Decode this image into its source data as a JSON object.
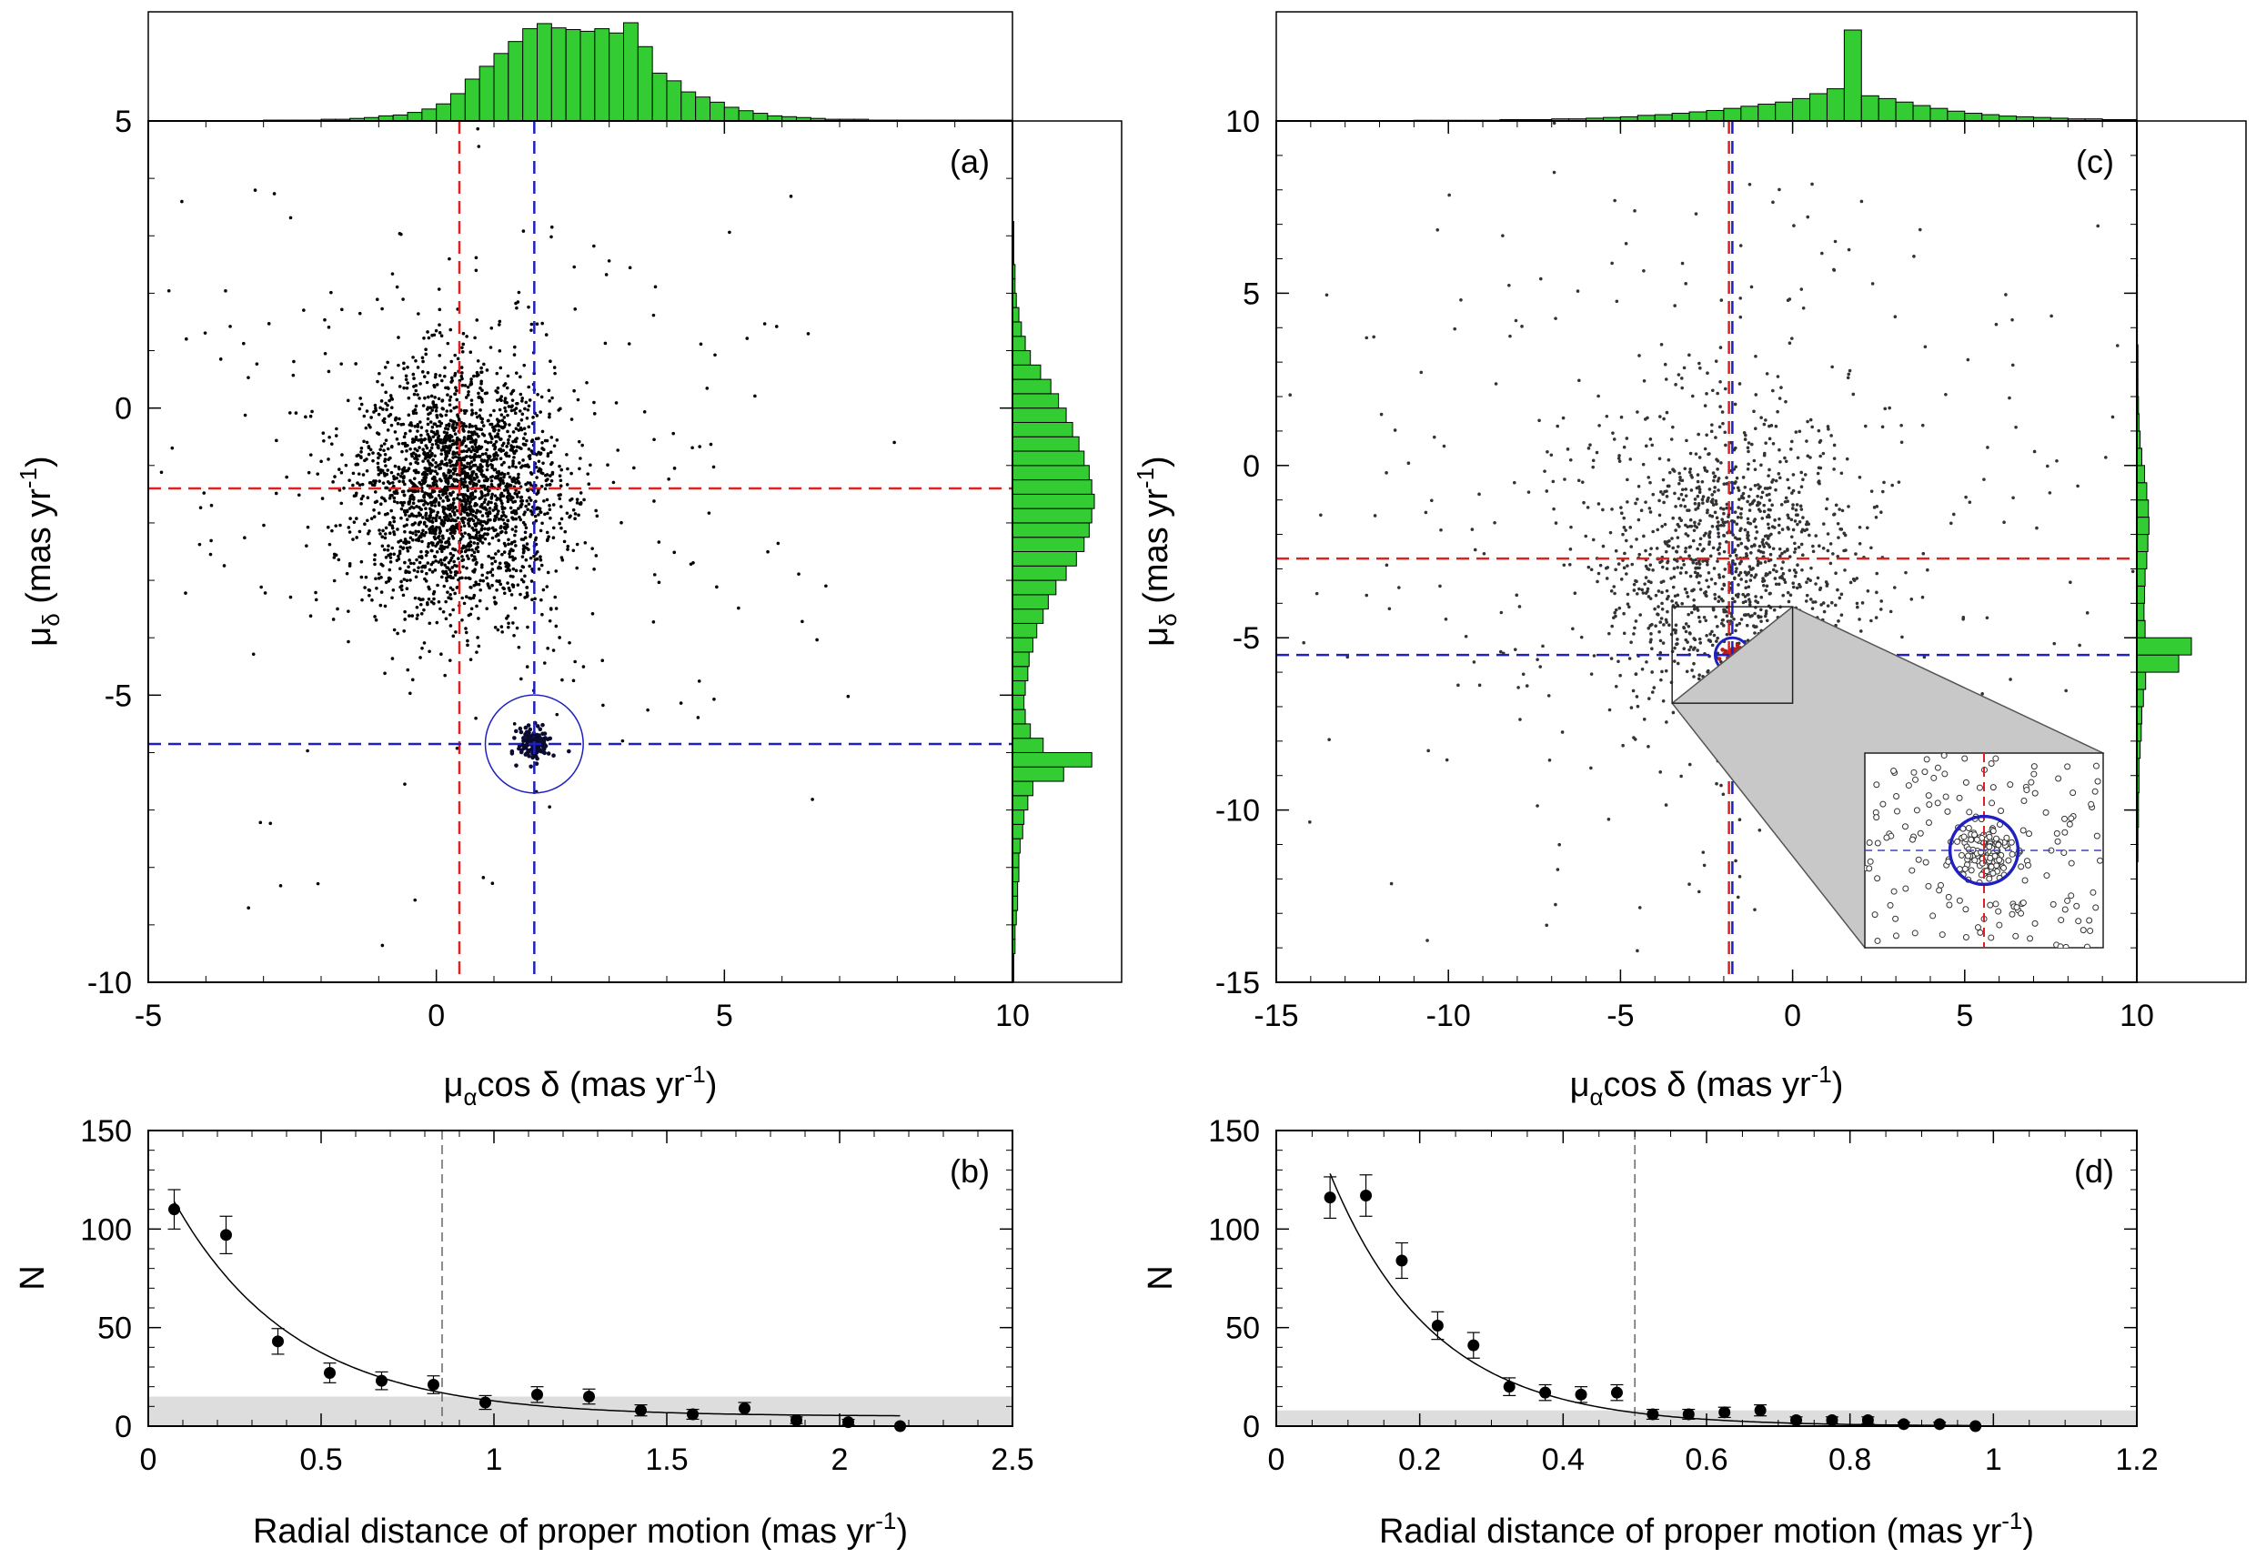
{
  "figure": {
    "panel_a": {
      "label": "(a)",
      "xlabel_mu": "μ",
      "xlabel_sub": "α",
      "xlabel_rest": "cos δ (mas yr",
      "xlabel_sup": "-1",
      "xlabel_close": ")",
      "ylabel_mu": "μ",
      "ylabel_sub": "δ",
      "ylabel_rest": " (mas yr",
      "ylabel_sup": "-1",
      "ylabel_close": ")"
    },
    "panel_b": {
      "label": "(b)",
      "ylabel": "N",
      "xlabel_main": "Radial distance of proper motion (mas yr",
      "xlabel_sup": "-1",
      "xlabel_close": ")"
    },
    "panel_c": {
      "label": "(c)",
      "xlabel_mu": "μ",
      "xlabel_sub": "α",
      "xlabel_rest": "cos δ (mas yr",
      "xlabel_sup": "-1",
      "xlabel_close": ")",
      "ylabel_mu": "μ",
      "ylabel_sub": "δ",
      "ylabel_rest": " (mas yr",
      "ylabel_sup": "-1",
      "ylabel_close": ")"
    },
    "panel_d": {
      "label": "(d)",
      "ylabel": "N",
      "xlabel_main": "Radial distance of proper motion (mas yr",
      "xlabel_sup": "-1",
      "xlabel_close": ")"
    }
  },
  "chart_data": [
    {
      "panel": "a",
      "type": "scatter",
      "xlim": [
        -5,
        10
      ],
      "ylim": [
        -10,
        5
      ],
      "xticks": [
        "-5",
        "0",
        "5",
        "10"
      ],
      "yticks": [
        "-10",
        "-5",
        "0",
        "5"
      ],
      "field_mean": {
        "pmra": 0.4,
        "pmdec": -1.4
      },
      "cluster_mean": {
        "pmra": 1.7,
        "pmdec": -5.85
      },
      "cluster_radius": 0.85,
      "top_histogram": {
        "x_start": -5,
        "bin_width": 0.25,
        "counts": [
          0,
          0,
          0,
          0,
          0,
          0,
          0,
          0,
          1,
          1,
          1,
          1,
          2,
          2,
          3,
          4,
          6,
          7,
          10,
          14,
          20,
          32,
          49,
          64,
          79,
          93,
          108,
          114,
          109,
          107,
          105,
          108,
          103,
          115,
          87,
          56,
          47,
          34,
          28,
          22,
          16,
          12,
          9,
          6,
          5,
          4,
          3,
          2,
          2,
          2,
          1,
          1,
          1,
          1,
          1,
          1,
          1,
          1,
          1,
          1
        ]
      },
      "right_histogram": {
        "y_start": -10,
        "bin_width": 0.25,
        "counts": [
          1,
          1,
          2,
          2,
          3,
          4,
          4,
          5,
          5,
          6,
          8,
          9,
          12,
          16,
          40,
          62,
          24,
          14,
          10,
          9,
          10,
          12,
          13,
          16,
          19,
          24,
          28,
          34,
          42,
          50,
          56,
          60,
          62,
          64,
          62,
          60,
          56,
          52,
          47,
          42,
          36,
          30,
          22,
          14,
          10,
          7,
          5,
          3,
          2,
          2,
          1,
          1,
          1,
          0,
          0,
          0,
          0,
          0,
          0,
          0
        ]
      }
    },
    {
      "panel": "b",
      "type": "scatter",
      "xlim": [
        0,
        2.5
      ],
      "ylim": [
        0,
        150
      ],
      "xticks": [
        "0",
        "0.5",
        "1",
        "1.5",
        "2",
        "2.5"
      ],
      "yticks": [
        "0",
        "50",
        "100",
        "150"
      ],
      "x": [
        0.075,
        0.225,
        0.375,
        0.525,
        0.675,
        0.825,
        0.975,
        1.125,
        1.275,
        1.425,
        1.575,
        1.725,
        1.875,
        2.025,
        2.175
      ],
      "y": [
        110,
        97,
        43,
        27,
        23,
        21,
        12,
        16,
        15,
        8,
        6,
        9,
        3,
        2,
        0
      ],
      "yerr": [
        10,
        9.5,
        6.5,
        5,
        4.5,
        4.5,
        3.5,
        4,
        3.8,
        2.8,
        2.5,
        3,
        1.7,
        1.4,
        0
      ],
      "fit": {
        "form": "a*exp(-x/b)+c",
        "a": 135,
        "b": 0.35,
        "c": 5,
        "x_range": [
          0.075,
          2.175
        ]
      },
      "background_band": [
        0,
        15
      ],
      "cut_radius": 0.85
    },
    {
      "panel": "c",
      "type": "scatter",
      "xlim": [
        -15,
        10
      ],
      "ylim": [
        -15,
        10
      ],
      "xticks": [
        "-15",
        "-10",
        "-5",
        "0",
        "5",
        "10"
      ],
      "yticks": [
        "-15",
        "-10",
        "-5",
        "0",
        "5",
        "10"
      ],
      "field_mean": {
        "pmra": -1.85,
        "pmdec": -2.7
      },
      "cluster_mean": {
        "pmra": -1.75,
        "pmdec": -5.5
      },
      "cluster_radius": 0.5,
      "zoom_box": {
        "x": [
          -3.5,
          0
        ],
        "y": [
          -6.9,
          -4.1
        ]
      },
      "top_histogram": {
        "x_start": -15,
        "bin_width": 0.5,
        "counts": [
          0,
          0,
          0,
          0,
          0,
          0,
          0,
          0,
          1,
          1,
          1,
          1,
          1,
          2,
          2,
          2,
          3,
          3,
          4,
          5,
          6,
          8,
          9,
          11,
          13,
          15,
          18,
          21,
          24,
          27,
          32,
          39,
          46,
          130,
          36,
          32,
          27,
          22,
          18,
          14,
          11,
          9,
          7,
          6,
          5,
          4,
          3,
          3,
          2,
          2
        ]
      },
      "right_histogram": {
        "y_start": -15,
        "bin_width": 0.5,
        "counts": [
          0,
          0,
          1,
          1,
          1,
          1,
          1,
          2,
          2,
          3,
          3,
          4,
          4,
          6,
          8,
          9,
          12,
          16,
          76,
          99,
          15,
          13,
          14,
          15,
          18,
          20,
          22,
          21,
          18,
          14,
          9,
          6,
          4,
          3,
          2,
          2,
          2,
          1,
          1,
          1,
          1,
          1,
          1,
          1,
          0,
          0,
          0,
          0,
          0,
          0
        ]
      }
    },
    {
      "panel": "d",
      "type": "scatter",
      "xlim": [
        0,
        1.2
      ],
      "ylim": [
        0,
        150
      ],
      "xticks": [
        "0",
        "0.2",
        "0.4",
        "0.6",
        "0.8",
        "1",
        "1.2"
      ],
      "yticks": [
        "0",
        "50",
        "100",
        "150"
      ],
      "x": [
        0.075,
        0.125,
        0.175,
        0.225,
        0.275,
        0.325,
        0.375,
        0.425,
        0.475,
        0.525,
        0.575,
        0.625,
        0.675,
        0.725,
        0.775,
        0.825,
        0.875,
        0.925,
        0.975
      ],
      "y": [
        116,
        117,
        84,
        51,
        41,
        20,
        17,
        16,
        17,
        6,
        6,
        7,
        8,
        3,
        3,
        3,
        1,
        1,
        0
      ],
      "yerr": [
        10.5,
        10.5,
        9,
        7,
        6.5,
        4.5,
        4,
        4,
        4,
        2.5,
        2.5,
        2.6,
        2.8,
        1.7,
        1.7,
        1.7,
        1,
        1,
        0
      ],
      "fit": {
        "form": "a*exp(-x/b)+c",
        "a": 215,
        "b": 0.145,
        "c": 0,
        "x_range": [
          0.075,
          0.975
        ]
      },
      "background_band": [
        0,
        8
      ],
      "cut_radius": 0.5
    }
  ]
}
